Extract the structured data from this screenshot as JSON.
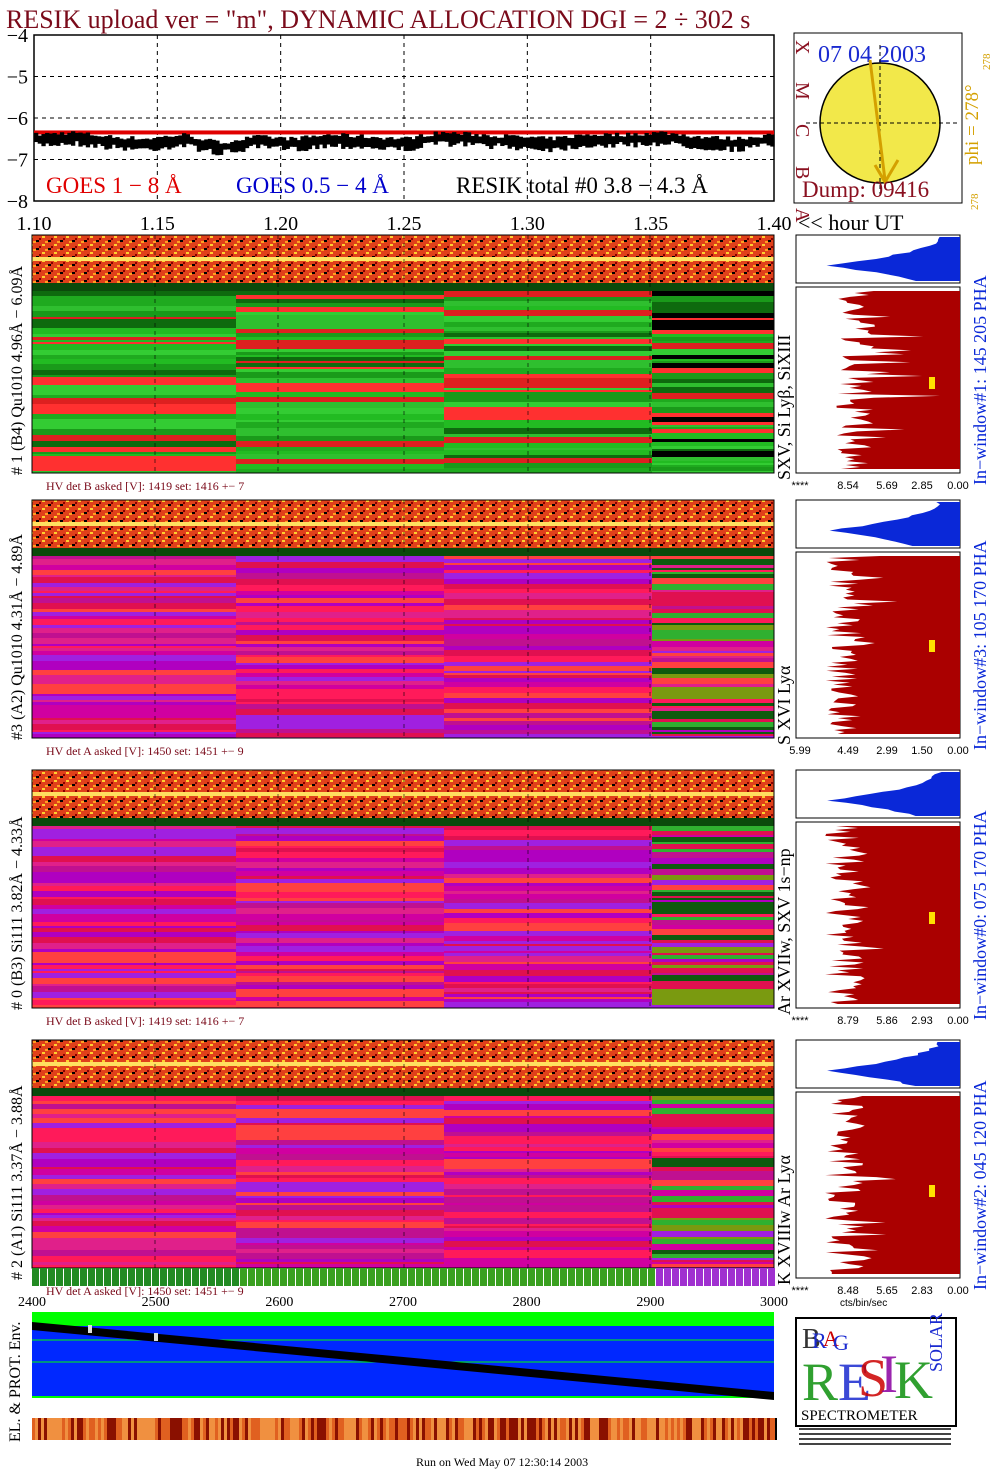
{
  "header": {
    "title": "RESIK upload ver = \"m\", DYNAMIC ALLOCATION  DGI =   2 ÷ 302 s"
  },
  "footer": {
    "run_text": "Run on Wed May 07 12:30:14 2003"
  },
  "colors": {
    "title": "#7a0a1a",
    "goes_long": "#e00000",
    "goes_short": "#0000cc",
    "resik_total": "#000000",
    "sun": "#f2e84a",
    "sun_label_blue": "#1a2ad0",
    "dump_label": "#8a1020",
    "phi": "#d4a000",
    "hist_blue": "#0a28d8",
    "hist_red": "#aa0000",
    "hv_text": "#7a0a1a",
    "spectra_green": "#22bb22",
    "spectra_magenta": "#d000a0",
    "env_blue": "#0028ff",
    "env_green": "#00ff00"
  },
  "chart_data": [
    {
      "type": "line",
      "name": "goes_panel",
      "ytick_labels": [
        "−4",
        "−5",
        "−6",
        "−7",
        "−8"
      ],
      "ylim": [
        -8,
        -4
      ],
      "xlim": [
        1.1,
        1.4
      ],
      "xtick_labels": [
        "1.10",
        "1.15",
        "1.20",
        "1.25",
        "1.30",
        "1.35",
        "1.40"
      ],
      "xlabel": "<< hour UT",
      "legend": [
        "GOES 1 − 8 Å",
        "GOES 0.5 − 4 Å",
        "RESIK total #0  3.8 − 4.3 Å"
      ],
      "series": [
        {
          "name": "GOES 1 − 8 Å",
          "value": -6.3
        },
        {
          "name": "RESIK total #0  3.8 − 4.3 Å",
          "values": [
            -6.5,
            -6.45,
            -6.55,
            -6.6,
            -6.5,
            -6.7,
            -6.55,
            -6.6,
            -6.5,
            -6.55,
            -6.6,
            -6.45,
            -6.5,
            -6.55,
            -6.6,
            -6.5,
            -6.5,
            -6.45,
            -6.55,
            -6.6,
            -6.5
          ]
        }
      ],
      "grid": true
    },
    {
      "type": "other",
      "name": "sun_panel",
      "date": "07 04 2003",
      "dump_label": "Dump: 09416",
      "left_letters": [
        "X",
        "M",
        "C",
        "B",
        "A"
      ],
      "phi_label": "phi = 278°",
      "phi_small_top": "278",
      "phi_small_bottom": "278",
      "phi_degrees": 278
    },
    {
      "type": "heatmap",
      "name": "spectra_panels",
      "panels": [
        {
          "id": "p1",
          "ylabel": "# 1 (B4) Qu1010 4.96Å − 6.09Å",
          "line_label": "SXV, Si Lyβ, SiXIII",
          "window_label": "In−window#1:  145 205 PHA",
          "hv_text": "HV det B asked [V]:  1419 set:  1416 +−   7",
          "hist_ticks": [
            "****",
            "8.54",
            "5.69",
            "2.85",
            "0.00"
          ],
          "base": "green"
        },
        {
          "id": "p3",
          "ylabel": "#3 (A2) Qu1010  4.31Å − 4.89Å",
          "line_label": "S XVI Lyα",
          "window_label": "In−window#3:  105 170 PHA",
          "hv_text": "HV det A asked [V]:  1450 set:  1451 +−   9",
          "hist_ticks": [
            "5.99",
            "4.49",
            "2.99",
            "1.50",
            "0.00"
          ],
          "base": "magenta"
        },
        {
          "id": "p0",
          "ylabel": "# 0 (B3) Si111  3.82Å − 4.33Å",
          "line_label": "Ar XVIIw,  SXV 1s−np",
          "window_label": "In−window#0:  075 170 PHA",
          "hv_text": "HV det B asked [V]:  1419 set:  1416 +−   7",
          "hist_ticks": [
            "****",
            "8.79",
            "5.86",
            "2.93",
            "0.00"
          ],
          "base": "magenta"
        },
        {
          "id": "p2",
          "ylabel": "# 2 (A1) Si111  3.37Å − 3.88Å",
          "line_label": "K XVIIIw  Ar Lyα",
          "window_label": "In−window#2:  045 120 PHA",
          "hv_text": "HV det A asked [V]:  1450 set:  1451 +−   9",
          "hist_ticks": [
            "****",
            "8.48",
            "5.65",
            "2.83",
            "0.00"
          ],
          "base": "magenta"
        }
      ],
      "hist_xlabel": "cts/bin/sec"
    },
    {
      "type": "line",
      "name": "environment_panel",
      "ylabel": "EL. & PROT. Env.",
      "xtick_labels": [
        "2400",
        "2500",
        "2600",
        "2700",
        "2800",
        "2900",
        "3000"
      ],
      "xlim": [
        2400,
        3000
      ]
    }
  ],
  "logo": {
    "bottom_text": "SPECTROMETER",
    "letters": [
      "B",
      "R",
      "A",
      "G",
      "R",
      "E",
      "S",
      "I",
      "K",
      "S",
      "O",
      "L",
      "A",
      "R"
    ]
  }
}
